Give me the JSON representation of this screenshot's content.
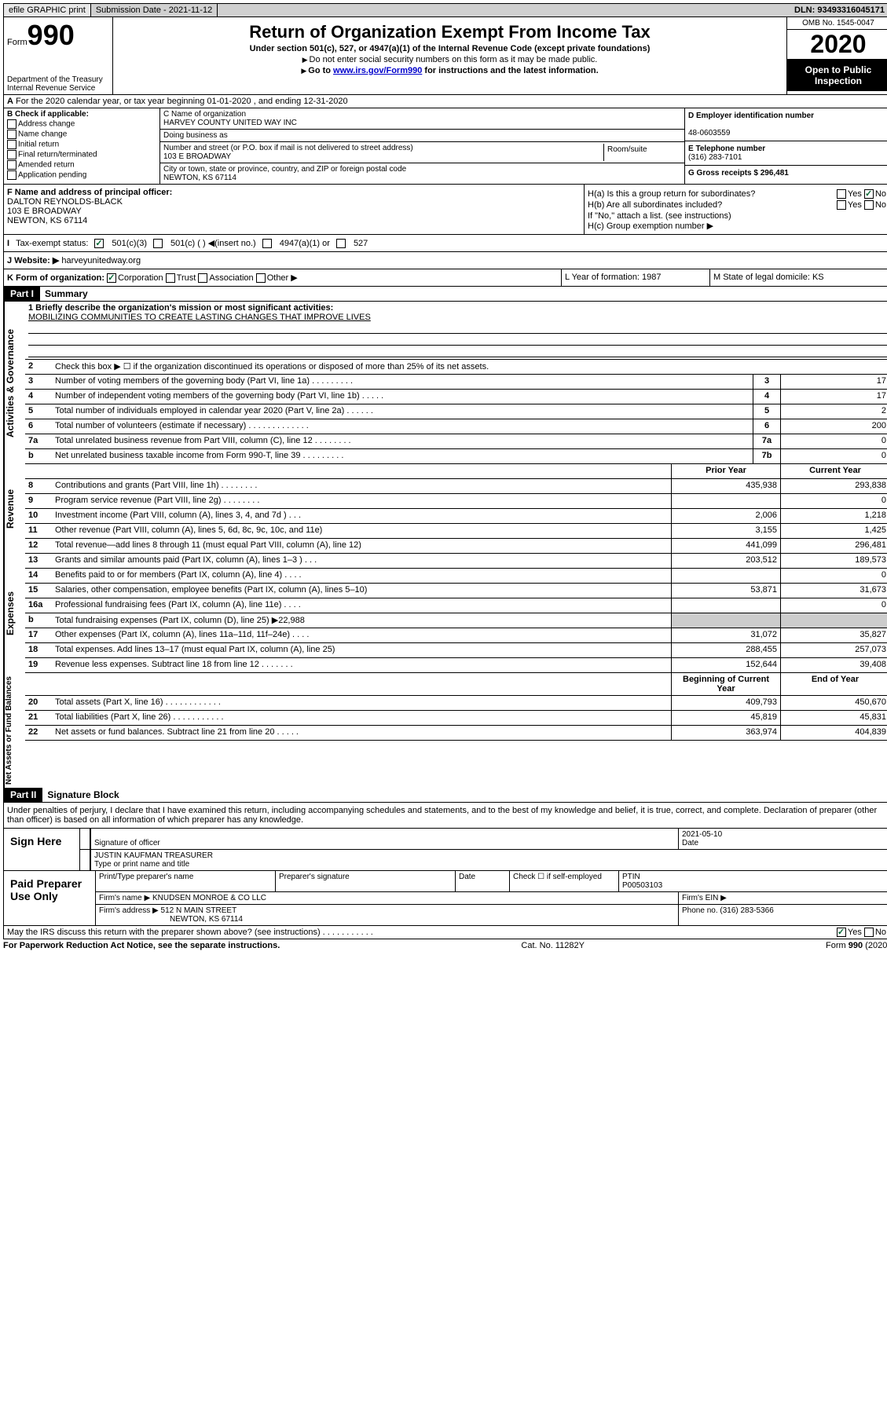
{
  "topbar": {
    "efile": "efile GRAPHIC print",
    "submission_label": "Submission Date - 2021-11-12",
    "dln": "DLN: 93493316045171"
  },
  "header": {
    "form_label": "Form",
    "form_num": "990",
    "dept": "Department of the Treasury\nInternal Revenue Service",
    "title": "Return of Organization Exempt From Income Tax",
    "subtitle": "Under section 501(c), 527, or 4947(a)(1) of the Internal Revenue Code (except private foundations)",
    "note1": "Do not enter social security numbers on this form as it may be made public.",
    "note2_pre": "Go to ",
    "note2_link": "www.irs.gov/Form990",
    "note2_post": " for instructions and the latest information.",
    "omb": "OMB No. 1545-0047",
    "year": "2020",
    "inspection": "Open to Public Inspection"
  },
  "row_a": "For the 2020 calendar year, or tax year beginning 01-01-2020    , and ending 12-31-2020",
  "col_b": {
    "label": "B Check if applicable:",
    "items": [
      "Address change",
      "Name change",
      "Initial return",
      "Final return/terminated",
      "Amended return",
      "Application pending"
    ]
  },
  "col_c": {
    "name_label": "C Name of organization",
    "name": "HARVEY COUNTY UNITED WAY INC",
    "dba_label": "Doing business as",
    "addr_label": "Number and street (or P.O. box if mail is not delivered to street address)",
    "addr": "103 E BROADWAY",
    "room_label": "Room/suite",
    "city_label": "City or town, state or province, country, and ZIP or foreign postal code",
    "city": "NEWTON, KS  67114"
  },
  "col_d": {
    "ein_label": "D Employer identification number",
    "ein": "48-0603559",
    "phone_label": "E Telephone number",
    "phone": "(316) 283-7101",
    "gross_label": "G Gross receipts $ 296,481"
  },
  "col_f": {
    "label": "F  Name and address of principal officer:",
    "name": "DALTON REYNOLDS-BLACK",
    "addr1": "103 E BROADWAY",
    "addr2": "NEWTON, KS  67114"
  },
  "col_h": {
    "ha_label": "H(a)  Is this a group return for subordinates?",
    "hb_label": "H(b)  Are all subordinates included?",
    "hb_note": "If \"No,\" attach a list. (see instructions)",
    "hc_label": "H(c)  Group exemption number ▶"
  },
  "row_i": {
    "label": "Tax-exempt status:",
    "opt1": "501(c)(3)",
    "opt2": "501(c) (   ) ◀(insert no.)",
    "opt3": "4947(a)(1) or",
    "opt4": "527"
  },
  "row_j": {
    "label": "J   Website: ▶",
    "val": "harveyunitedway.org"
  },
  "row_k": "K Form of organization:",
  "row_k_opts": [
    "Corporation",
    "Trust",
    "Association",
    "Other ▶"
  ],
  "row_l": "L Year of formation: 1987",
  "row_m": "M State of legal domicile: KS",
  "part1": "Part I",
  "summary": "Summary",
  "mission": {
    "q1": "1    Briefly describe the organization's mission or most significant activities:",
    "text": "MOBILIZING COMMUNITIES TO CREATE LASTING CHANGES THAT IMPROVE LIVES"
  },
  "gov_rows": [
    {
      "n": "2",
      "desc": "Check this box ▶ ☐  if the organization discontinued its operations or disposed of more than 25% of its net assets."
    },
    {
      "n": "3",
      "desc": "Number of voting members of the governing body (Part VI, line 1a)   .    .    .    .    .    .    .    .    .",
      "box": "3",
      "v": "17"
    },
    {
      "n": "4",
      "desc": "Number of independent voting members of the governing body (Part VI, line 1b)   .    .    .    .    .",
      "box": "4",
      "v": "17"
    },
    {
      "n": "5",
      "desc": "Total number of individuals employed in calendar year 2020 (Part V, line 2a)   .    .    .    .    .    .",
      "box": "5",
      "v": "2"
    },
    {
      "n": "6",
      "desc": "Total number of volunteers (estimate if necessary)   .    .    .    .    .    .    .    .    .    .    .    .    .",
      "box": "6",
      "v": "200"
    },
    {
      "n": "7a",
      "desc": "Total unrelated business revenue from Part VIII, column (C), line 12   .    .    .    .    .    .    .    .",
      "box": "7a",
      "v": "0"
    },
    {
      "n": "b",
      "desc": "Net unrelated business taxable income from Form 990-T, line 39   .    .    .    .    .    .    .    .    .",
      "box": "7b",
      "v": "0"
    }
  ],
  "rev_hdr": {
    "prior": "Prior Year",
    "current": "Current Year"
  },
  "rev_rows": [
    {
      "n": "8",
      "desc": "Contributions and grants (Part VIII, line 1h)   .    .    .    .    .    .    .    .",
      "p": "435,938",
      "c": "293,838"
    },
    {
      "n": "9",
      "desc": "Program service revenue (Part VIII, line 2g)   .    .    .    .    .    .    .    .",
      "p": "",
      "c": "0"
    },
    {
      "n": "10",
      "desc": "Investment income (Part VIII, column (A), lines 3, 4, and 7d )   .    .    .",
      "p": "2,006",
      "c": "1,218"
    },
    {
      "n": "11",
      "desc": "Other revenue (Part VIII, column (A), lines 5, 6d, 8c, 9c, 10c, and 11e)",
      "p": "3,155",
      "c": "1,425"
    },
    {
      "n": "12",
      "desc": "Total revenue—add lines 8 through 11 (must equal Part VIII, column (A), line 12)",
      "p": "441,099",
      "c": "296,481"
    }
  ],
  "exp_rows": [
    {
      "n": "13",
      "desc": "Grants and similar amounts paid (Part IX, column (A), lines 1–3 )   .    .    .",
      "p": "203,512",
      "c": "189,573"
    },
    {
      "n": "14",
      "desc": "Benefits paid to or for members (Part IX, column (A), line 4)   .    .    .    .",
      "p": "",
      "c": "0"
    },
    {
      "n": "15",
      "desc": "Salaries, other compensation, employee benefits (Part IX, column (A), lines 5–10)",
      "p": "53,871",
      "c": "31,673"
    },
    {
      "n": "16a",
      "desc": "Professional fundraising fees (Part IX, column (A), line 11e)   .    .    .    .",
      "p": "",
      "c": "0"
    },
    {
      "n": "b",
      "desc": "Total fundraising expenses (Part IX, column (D), line 25) ▶22,988",
      "gray": true
    },
    {
      "n": "17",
      "desc": "Other expenses (Part IX, column (A), lines 11a–11d, 11f–24e)   .    .    .    .",
      "p": "31,072",
      "c": "35,827"
    },
    {
      "n": "18",
      "desc": "Total expenses. Add lines 13–17 (must equal Part IX, column (A), line 25)",
      "p": "288,455",
      "c": "257,073"
    },
    {
      "n": "19",
      "desc": "Revenue less expenses. Subtract line 18 from line 12   .    .    .    .    .    .    .",
      "p": "152,644",
      "c": "39,408"
    }
  ],
  "na_hdr": {
    "begin": "Beginning of Current Year",
    "end": "End of Year"
  },
  "na_rows": [
    {
      "n": "20",
      "desc": "Total assets (Part X, line 16)   .    .    .    .    .    .    .    .    .    .    .    .",
      "p": "409,793",
      "c": "450,670"
    },
    {
      "n": "21",
      "desc": "Total liabilities (Part X, line 26)   .    .    .    .    .    .    .    .    .    .    .",
      "p": "45,819",
      "c": "45,831"
    },
    {
      "n": "22",
      "desc": "Net assets or fund balances. Subtract line 21 from line 20   .    .    .    .    .",
      "p": "363,974",
      "c": "404,839"
    }
  ],
  "part2": "Part II",
  "sig_block_title": "Signature Block",
  "sig_text": "Under penalties of perjury, I declare that I have examined this return, including accompanying schedules and statements, and to the best of my knowledge and belief, it is true, correct, and complete. Declaration of preparer (other than officer) is based on all information of which preparer has any knowledge.",
  "sign": {
    "here": "Sign Here",
    "sig_label": "Signature of officer",
    "date": "2021-05-10",
    "date_label": "Date",
    "name": "JUSTIN KAUFMAN  TREASURER",
    "name_label": "Type or print name and title"
  },
  "prep": {
    "title": "Paid Preparer Use Only",
    "h1": "Print/Type preparer's name",
    "h2": "Preparer's signature",
    "h3": "Date",
    "h4": "Check ☐ if self-employed",
    "h5": "PTIN",
    "ptin": "P00503103",
    "firm_label": "Firm's name      ▶",
    "firm": "KNUDSEN MONROE & CO LLC",
    "ein_label": "Firm's EIN ▶",
    "addr_label": "Firm's address ▶",
    "addr1": "512 N MAIN STREET",
    "addr2": "NEWTON, KS  67114",
    "phone_label": "Phone no. (316) 283-5366"
  },
  "discuss": "May the IRS discuss this return with the preparer shown above? (see instructions)   .    .    .    .    .    .    .    .    .    .    .",
  "footer": {
    "left": "For Paperwork Reduction Act Notice, see the separate instructions.",
    "mid": "Cat. No. 11282Y",
    "right": "Form 990 (2020)"
  }
}
